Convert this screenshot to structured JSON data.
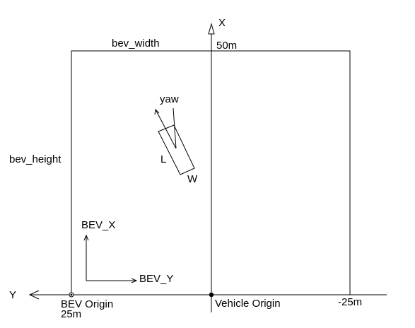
{
  "labels": {
    "x_axis": "X",
    "y_axis": "Y",
    "bev_width": "bev_width",
    "bev_height": "bev_height",
    "top_range": "50m",
    "bev_x": "BEV_X",
    "bev_y": "BEV_Y",
    "bev_origin": "BEV Origin",
    "bev_origin_range": "25m",
    "vehicle_origin": "Vehicle Origin",
    "right_range": "-25m",
    "yaw": "yaw",
    "length": "L",
    "width": "W"
  }
}
